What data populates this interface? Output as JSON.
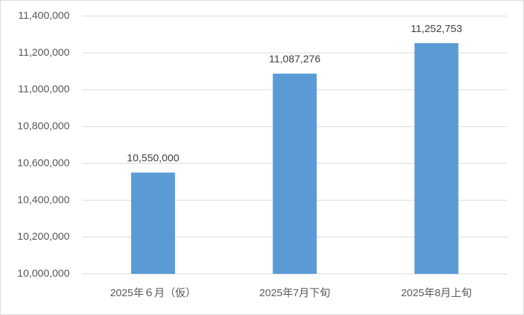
{
  "chart_data": {
    "type": "bar",
    "categories": [
      "2025年６月（仮）",
      "2025年7月下旬",
      "2025年8月上旬"
    ],
    "values": [
      10550000,
      11087276,
      11252753
    ],
    "value_labels": [
      "10,550,000",
      "11,087,276",
      "11,252,753"
    ],
    "color": "#5b9bd5",
    "ylim": [
      10000000,
      11400000
    ],
    "yticks": [
      {
        "value": 10000000,
        "label": "10,000,000"
      },
      {
        "value": 10200000,
        "label": "10,200,000"
      },
      {
        "value": 10400000,
        "label": "10,400,000"
      },
      {
        "value": 10600000,
        "label": "10,600,000"
      },
      {
        "value": 10800000,
        "label": "10,800,000"
      },
      {
        "value": 11000000,
        "label": "11,000,000"
      },
      {
        "value": 11200000,
        "label": "11,200,000"
      },
      {
        "value": 11400000,
        "label": "11,400,000"
      }
    ],
    "grid": true
  }
}
